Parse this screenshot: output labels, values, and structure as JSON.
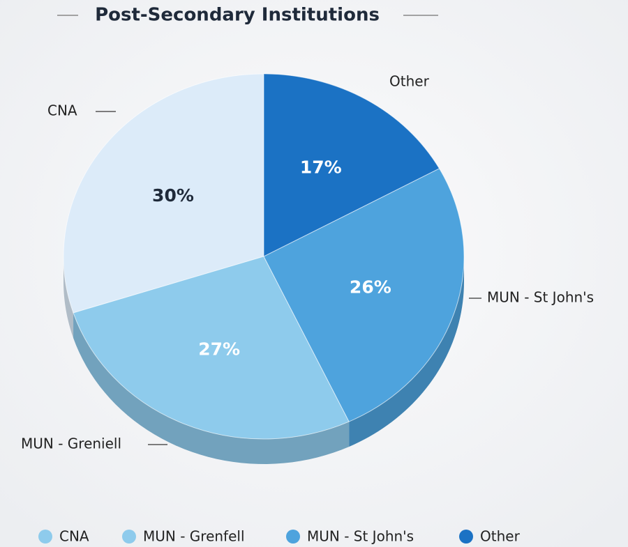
{
  "chart_data": {
    "type": "pie",
    "title": "Post-Secondary Institutions",
    "categories": [
      "CNA",
      "MUN - Grenfell",
      "MUN - St John's",
      "Other"
    ],
    "slice_labels": [
      "CNA",
      "MUN - Greniell",
      "MUN - St  John's",
      "Other"
    ],
    "values": [
      30,
      27,
      26,
      17
    ],
    "value_labels": [
      "30%",
      "27%",
      "26%",
      "17%"
    ],
    "colors": [
      "#dcebf9",
      "#8ecbec",
      "#4ea3dd",
      "#1b72c4"
    ],
    "legend": "bottom"
  }
}
